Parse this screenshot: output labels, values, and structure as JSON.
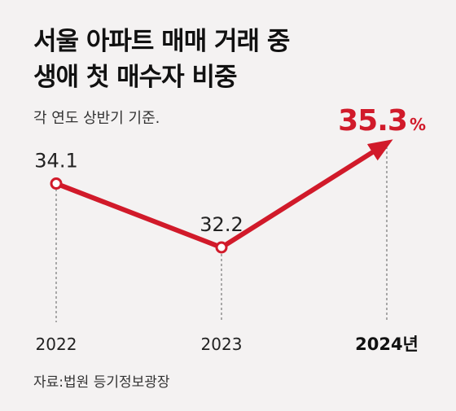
{
  "colors": {
    "accent": "#d11a2a",
    "background": "#f4f2f2",
    "text": "#222222"
  },
  "chart_data": {
    "type": "line",
    "title_lines": [
      "서울 아파트 매매 거래 중",
      "생애 첫 매수자 비중"
    ],
    "subtitle": "각 연도 상반기 기준.",
    "x_labels": [
      "2022",
      "2023",
      "2024년"
    ],
    "values": [
      34.1,
      32.2,
      35.3
    ],
    "value_labels": [
      "34.1",
      "32.2",
      "35.3"
    ],
    "unit_on_last": "%",
    "source": "자료:법원 등기정보광장",
    "grid": false,
    "legend": "none"
  }
}
